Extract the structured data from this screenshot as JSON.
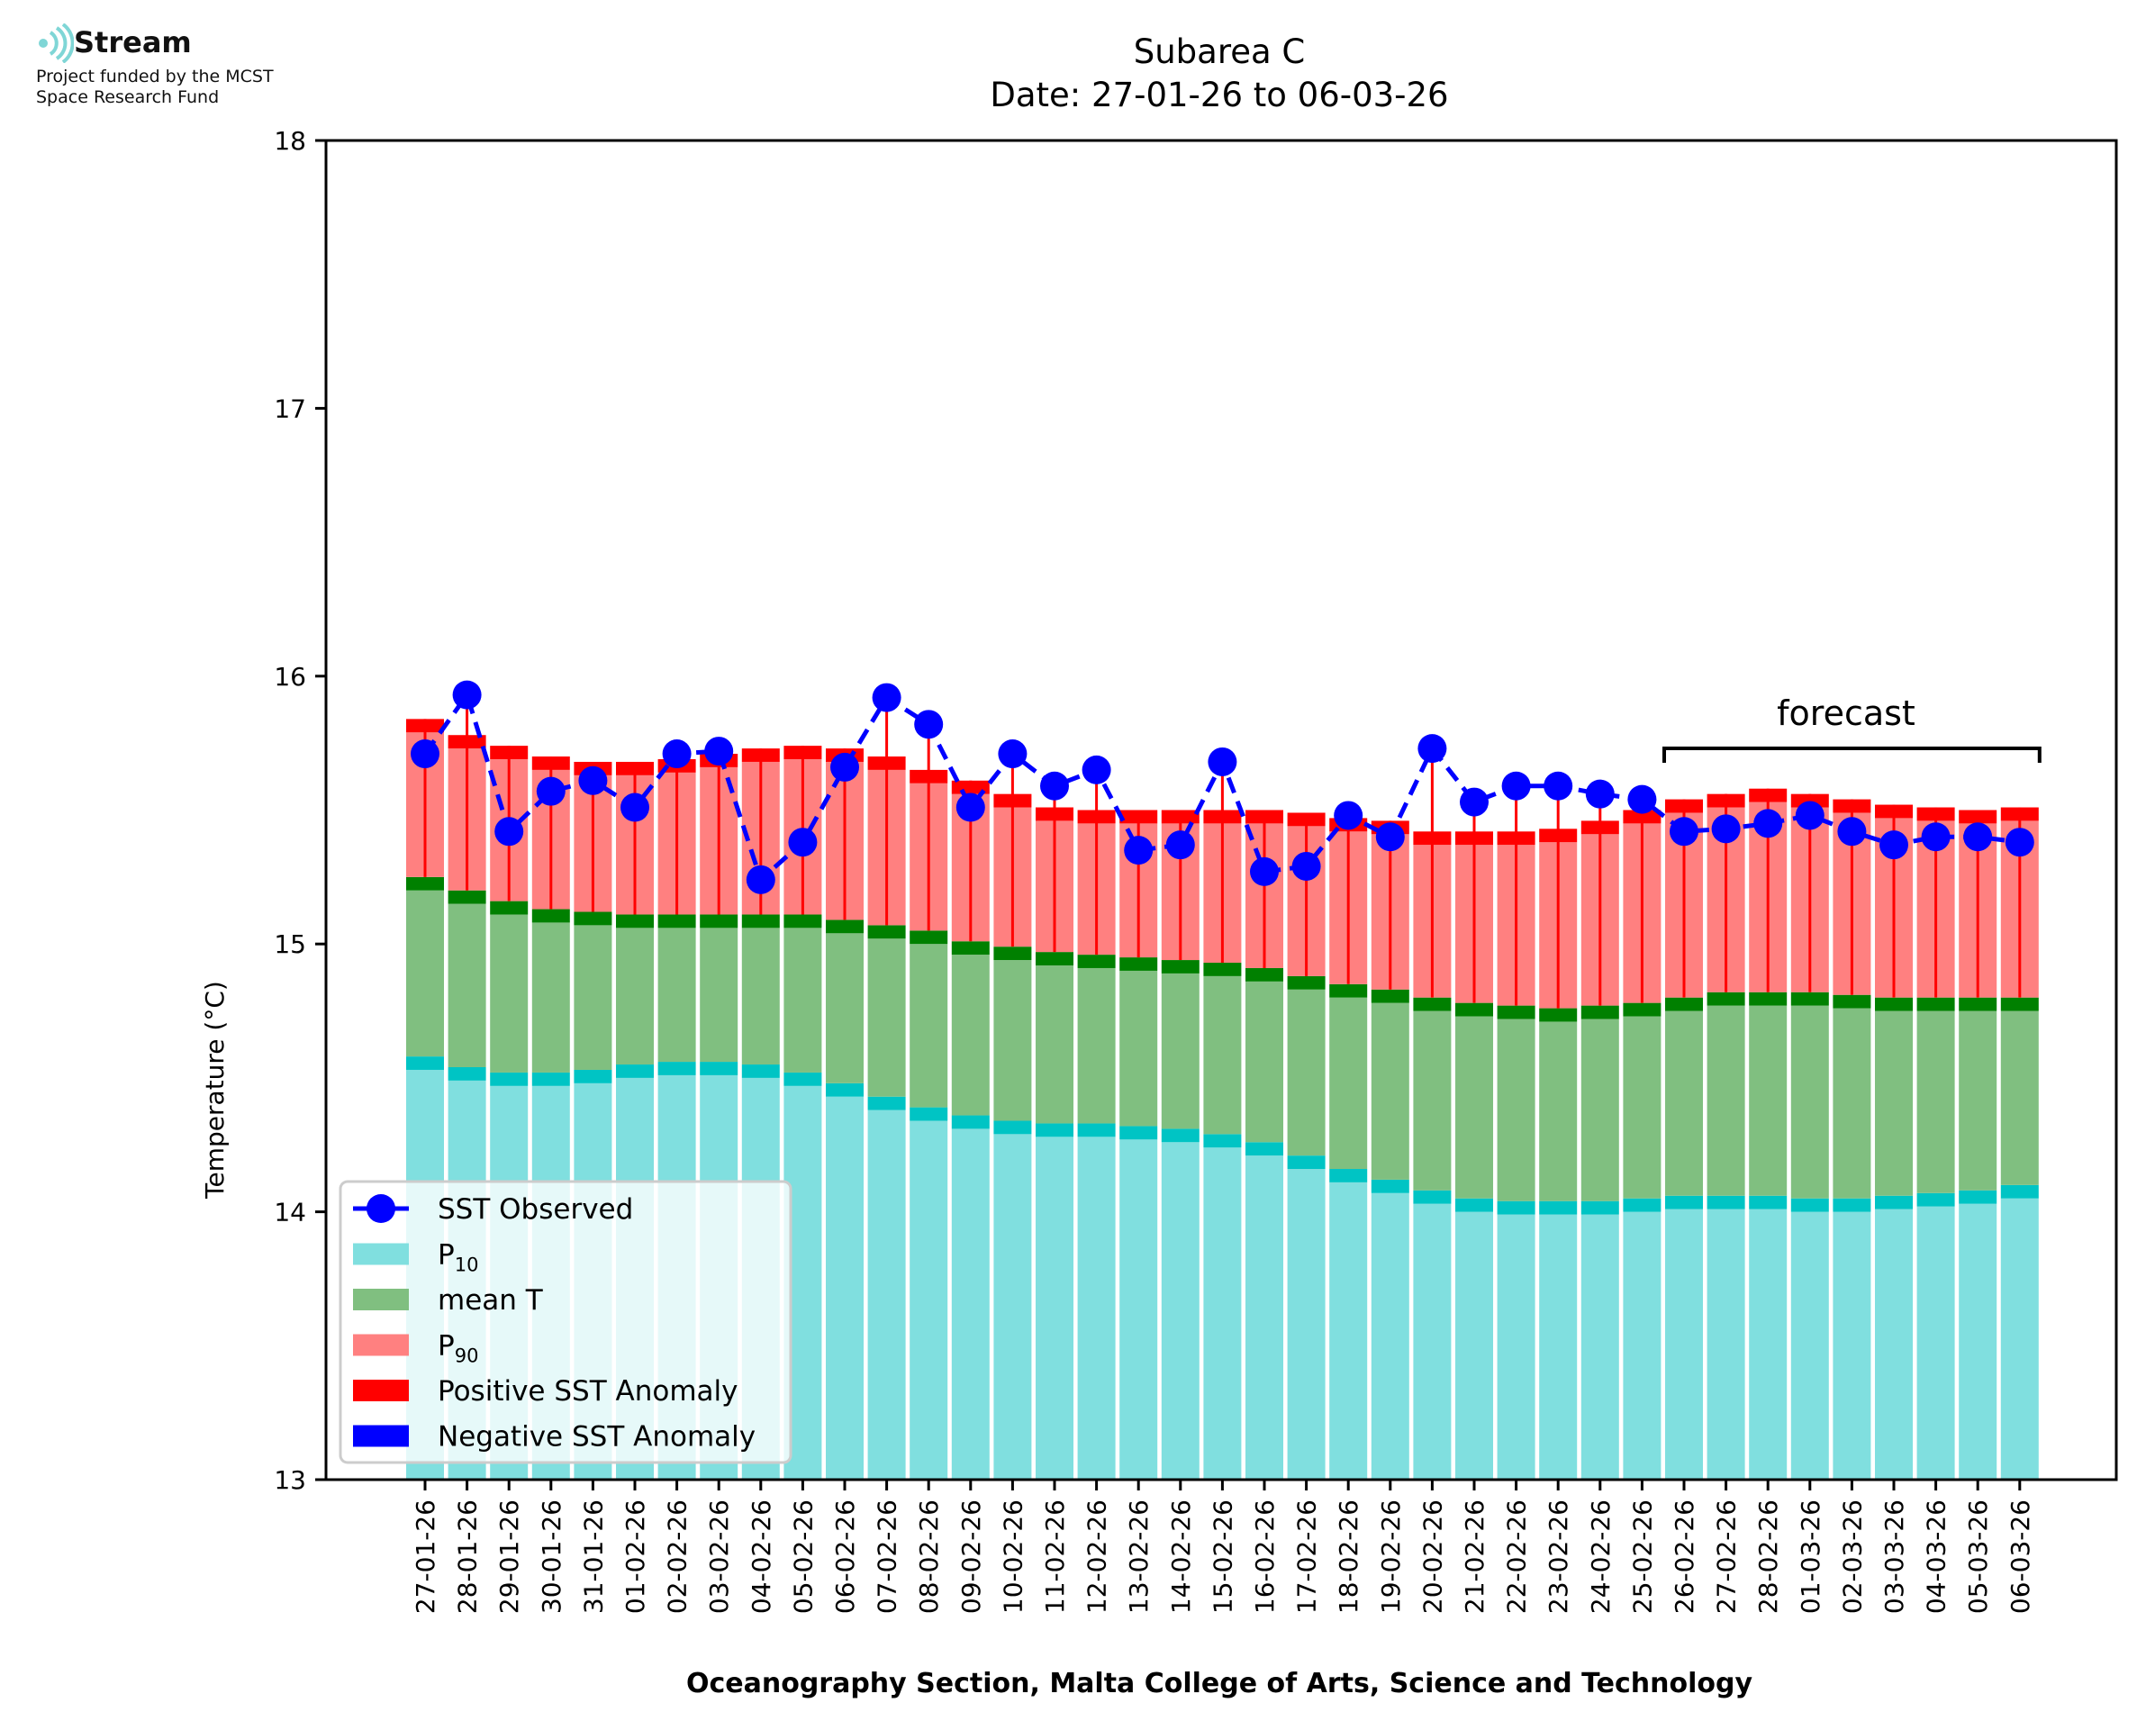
{
  "header": {
    "logo_name": "Stream",
    "funded_line1": "Project funded by the MCST",
    "funded_line2": "Space Research Fund",
    "logo_color": "#7fd6d6"
  },
  "chart_data": {
    "type": "bar",
    "title": "Subarea C",
    "subtitle": "Date: 27-01-26 to 06-03-26",
    "ylabel": "Temperature (°C)",
    "xlabel": "Oceanography Section, Malta College of Arts, Science and Technology",
    "ylim": [
      13,
      18
    ],
    "yticks": [
      13,
      14,
      15,
      16,
      17,
      18
    ],
    "categories": [
      "27-01-26",
      "28-01-26",
      "29-01-26",
      "30-01-26",
      "31-01-26",
      "01-02-26",
      "02-02-26",
      "03-02-26",
      "04-02-26",
      "05-02-26",
      "06-02-26",
      "07-02-26",
      "08-02-26",
      "09-02-26",
      "10-02-26",
      "11-02-26",
      "12-02-26",
      "13-02-26",
      "14-02-26",
      "15-02-26",
      "16-02-26",
      "17-02-26",
      "18-02-26",
      "19-02-26",
      "20-02-26",
      "21-02-26",
      "22-02-26",
      "23-02-26",
      "24-02-26",
      "25-02-26",
      "26-02-26",
      "27-02-26",
      "28-02-26",
      "01-03-26",
      "02-03-26",
      "03-03-26",
      "04-03-26",
      "05-03-26",
      "06-03-26"
    ],
    "series": [
      {
        "name": "P10",
        "color": "#80dfdf",
        "values": [
          14.53,
          14.49,
          14.47,
          14.47,
          14.48,
          14.5,
          14.51,
          14.51,
          14.5,
          14.47,
          14.43,
          14.38,
          14.34,
          14.31,
          14.29,
          14.28,
          14.28,
          14.27,
          14.26,
          14.24,
          14.21,
          14.16,
          14.11,
          14.07,
          14.03,
          14.0,
          13.99,
          13.99,
          13.99,
          14.0,
          14.01,
          14.01,
          14.01,
          14.0,
          14.0,
          14.01,
          14.02,
          14.03,
          14.05
        ]
      },
      {
        "name": "mean T",
        "color": "#80bf80",
        "values": [
          15.2,
          15.15,
          15.11,
          15.08,
          15.07,
          15.06,
          15.06,
          15.06,
          15.06,
          15.06,
          15.04,
          15.02,
          15.0,
          14.96,
          14.94,
          14.92,
          14.91,
          14.9,
          14.89,
          14.88,
          14.86,
          14.83,
          14.8,
          14.78,
          14.75,
          14.73,
          14.72,
          14.71,
          14.72,
          14.73,
          14.75,
          14.77,
          14.77,
          14.77,
          14.76,
          14.75,
          14.75,
          14.75,
          14.75
        ]
      },
      {
        "name": "P90",
        "color": "#ff8080",
        "values": [
          15.79,
          15.73,
          15.69,
          15.65,
          15.63,
          15.63,
          15.64,
          15.66,
          15.68,
          15.69,
          15.68,
          15.65,
          15.6,
          15.56,
          15.51,
          15.46,
          15.45,
          15.45,
          15.45,
          15.45,
          15.45,
          15.44,
          15.42,
          15.41,
          15.37,
          15.37,
          15.37,
          15.38,
          15.41,
          15.45,
          15.49,
          15.51,
          15.53,
          15.51,
          15.49,
          15.47,
          15.46,
          15.45,
          15.46
        ]
      },
      {
        "name": "SST Observed",
        "color": "#0000ff",
        "values": [
          15.71,
          15.93,
          15.42,
          15.57,
          15.61,
          15.51,
          15.71,
          15.72,
          15.24,
          15.38,
          15.66,
          15.92,
          15.82,
          15.51,
          15.71,
          15.59,
          15.65,
          15.35,
          15.37,
          15.68,
          15.27,
          15.29,
          15.48,
          15.4,
          15.73,
          15.53,
          15.59,
          15.59,
          15.56,
          15.54,
          15.42,
          15.43,
          15.45,
          15.48,
          15.42,
          15.37,
          15.4,
          15.4,
          15.38
        ]
      }
    ],
    "legend": {
      "position": "bottom-left",
      "entries": [
        {
          "label": "SST Observed",
          "kind": "line",
          "color": "#0000ff"
        },
        {
          "label": "P",
          "sub": "10",
          "kind": "patch",
          "color": "#80dfdf"
        },
        {
          "label": "mean T",
          "kind": "patch",
          "color": "#80bf80"
        },
        {
          "label": "P",
          "sub": "90",
          "kind": "patch",
          "color": "#ff8080"
        },
        {
          "label": "Positive SST Anomaly",
          "kind": "patch",
          "color": "#ff0000"
        },
        {
          "label": "Negative SST Anomaly",
          "kind": "patch",
          "color": "#0000ff"
        }
      ]
    },
    "forecast": {
      "label": "forecast",
      "from": "26-02-26",
      "to": "06-03-26"
    },
    "colors": {
      "p10_band": "#00c4c4",
      "mean_band": "#008000",
      "p90_band": "#ff0000",
      "positive_anomaly": "#ff0000",
      "negative_anomaly": "#0000ff"
    },
    "grid": false
  }
}
